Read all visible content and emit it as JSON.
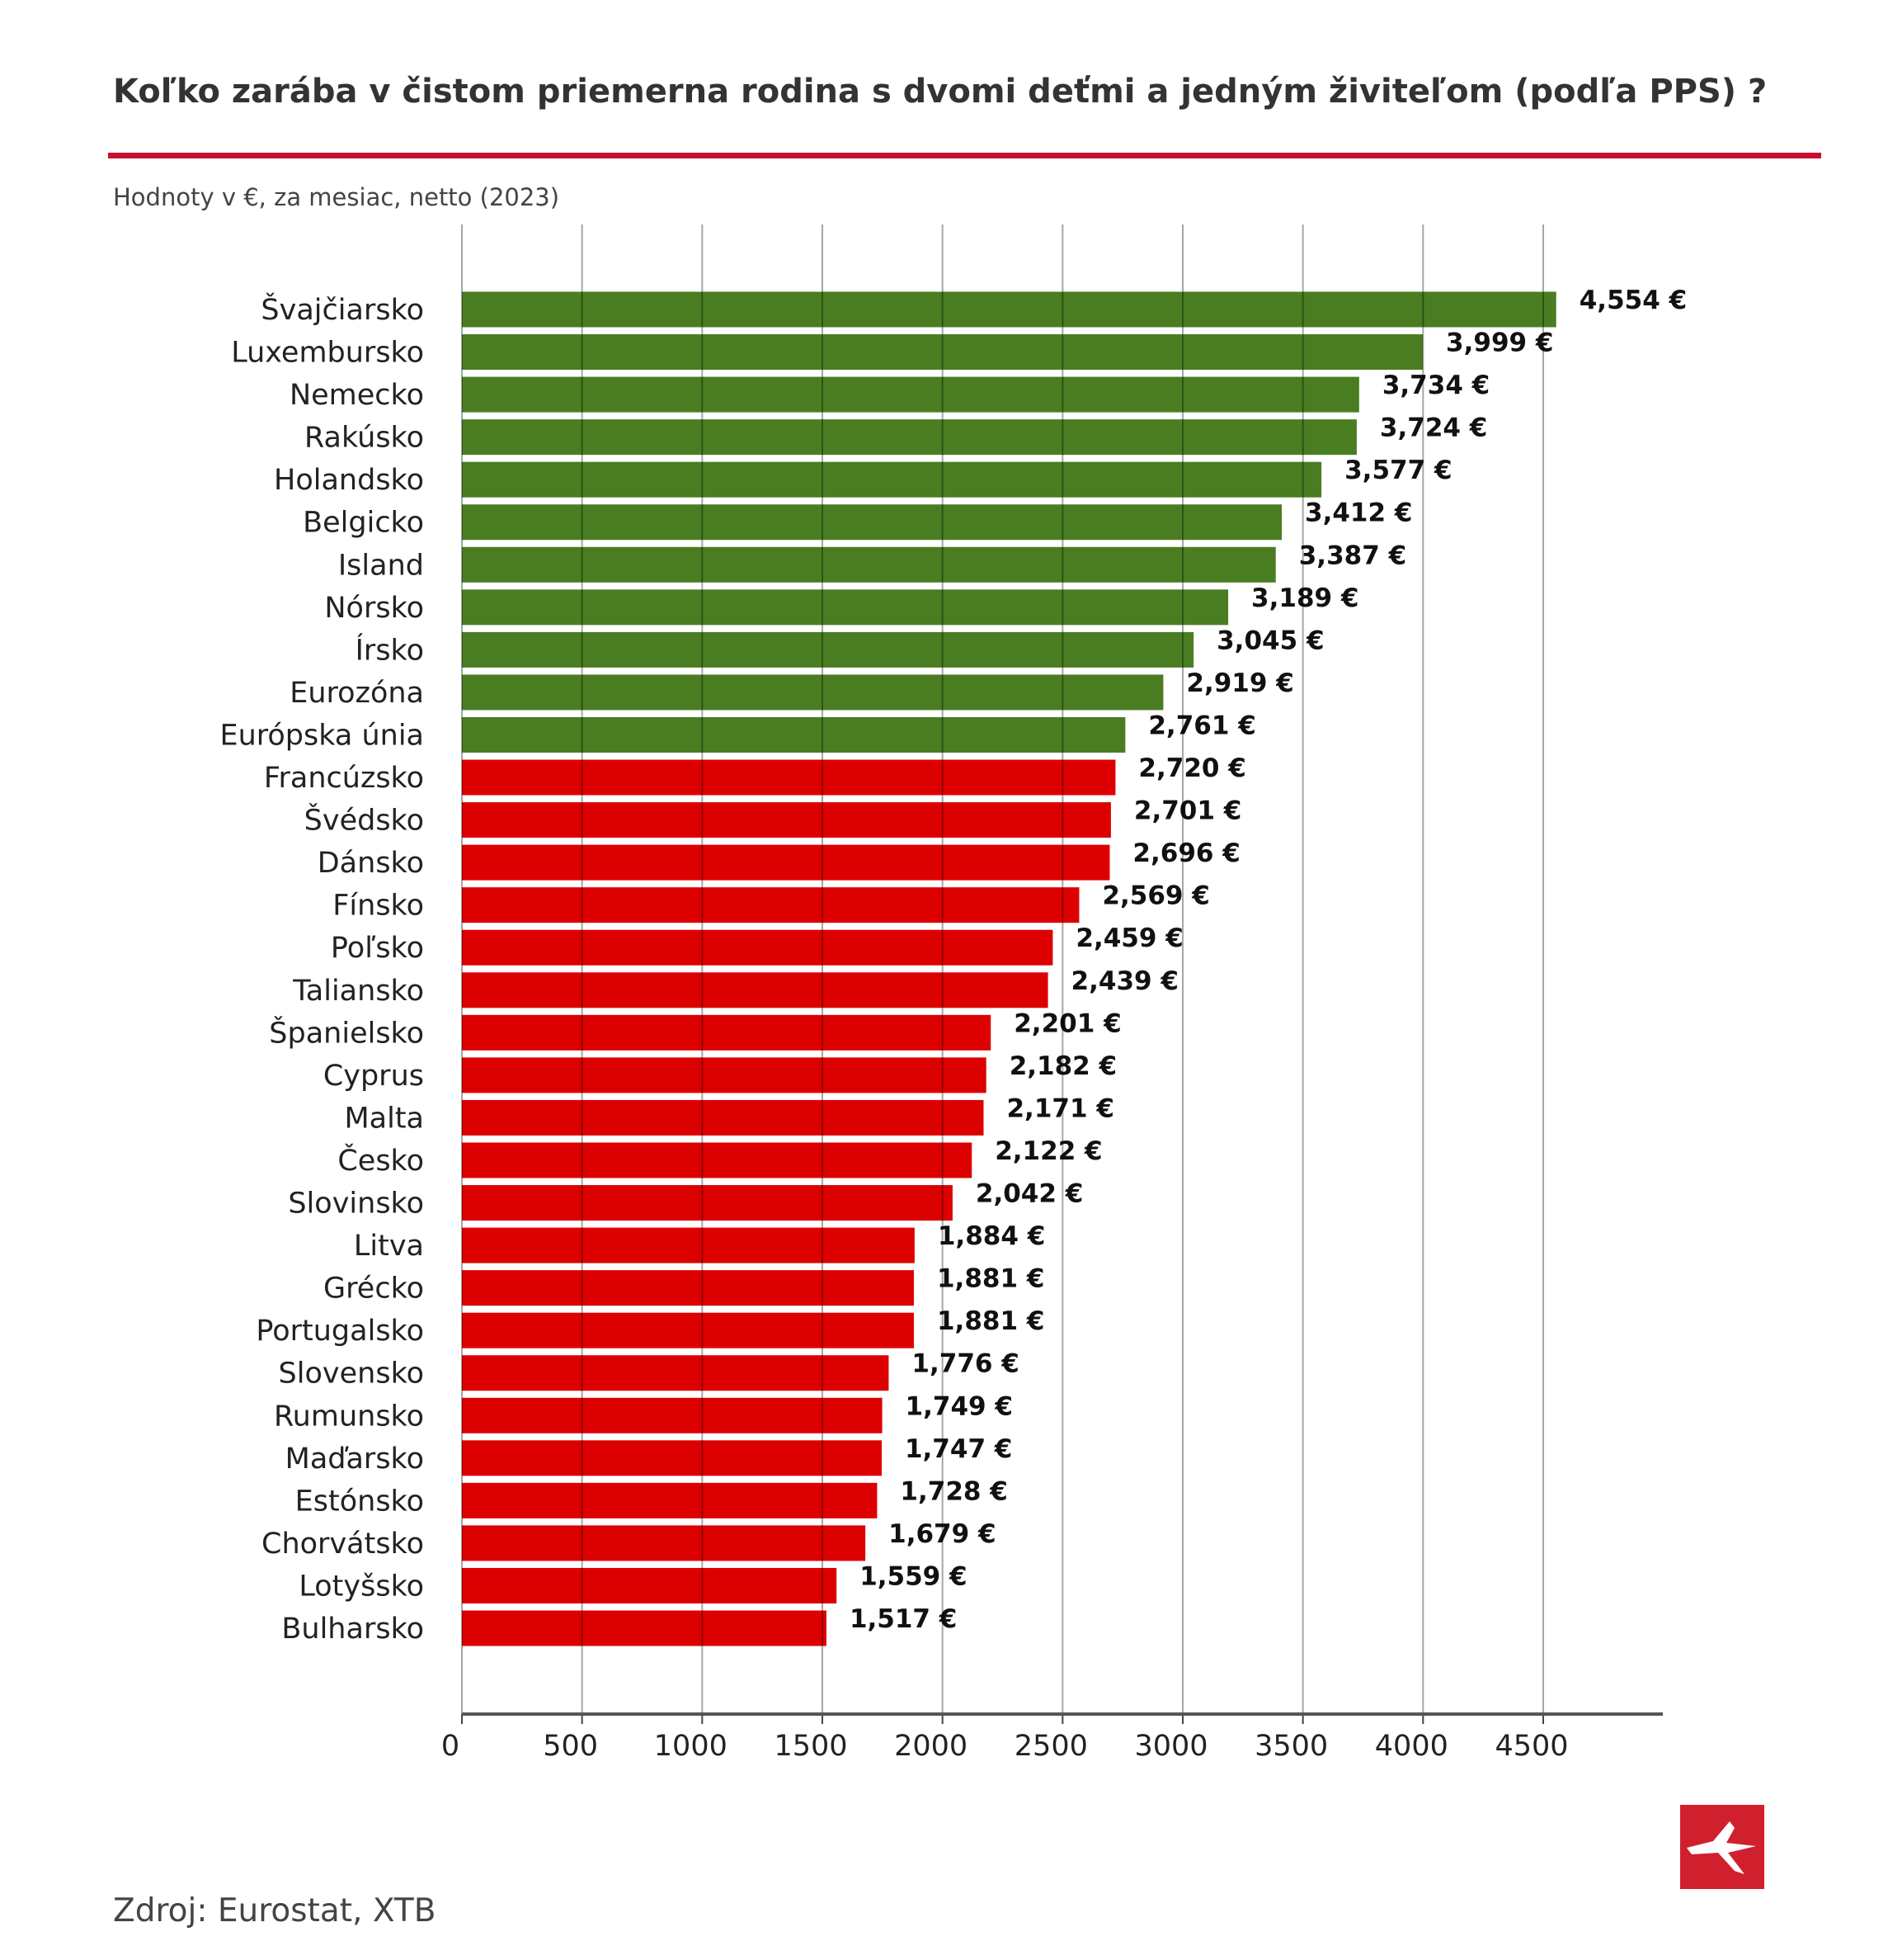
{
  "title": "Koľko zarába v čistom priemerna rodina s dvomi deťmi a jedným živiteľom (podľa PPS) ?",
  "subtitle": "Hodnoty v €, za mesiac, netto (2023)",
  "source": "Zdroj: Eurostat, XTB",
  "logo": "XTB",
  "colors": {
    "above": "#4a7d22",
    "below": "#dd0000",
    "accent": "#c8102e"
  },
  "chart_data": {
    "type": "bar",
    "orientation": "horizontal",
    "title": "Koľko zarába v čistom priemerna rodina s dvomi deťmi a jedným živiteľom (podľa PPS) ?",
    "subtitle": "Hodnoty v €, za mesiac, netto (2023)",
    "categories": [
      "Švajčiarsko",
      "Luxembursko",
      "Nemecko",
      "Rakúsko",
      "Holandsko",
      "Belgicko",
      "Island",
      "Nórsko",
      "Írsko",
      "Eurozóna",
      "Európska únia",
      "Francúzsko",
      "Švédsko",
      "Dánsko",
      "Fínsko",
      "Poľsko",
      "Taliansko",
      "Španielsko",
      "Cyprus",
      "Malta",
      "Česko",
      "Slovinsko",
      "Litva",
      "Grécko",
      "Portugalsko",
      "Slovensko",
      "Rumunsko",
      "Maďarsko",
      "Estónsko",
      "Chorvátsko",
      "Lotyšsko",
      "Bulharsko"
    ],
    "values": [
      4554,
      3999,
      3734,
      3724,
      3577,
      3412,
      3387,
      3189,
      3045,
      2919,
      2761,
      2720,
      2701,
      2696,
      2569,
      2459,
      2439,
      2201,
      2182,
      2171,
      2122,
      2042,
      1884,
      1881,
      1881,
      1776,
      1749,
      1747,
      1728,
      1679,
      1559,
      1517
    ],
    "value_labels": [
      "4,554 €",
      "3,999 €",
      "3,734 €",
      "3,724 €",
      "3,577 €",
      "3,412 €",
      "3,387 €",
      "3,189 €",
      "3,045 €",
      "2,919 €",
      "2,761 €",
      "2,720 €",
      "2,701 €",
      "2,696 €",
      "2,569 €",
      "2,459 €",
      "2,439 €",
      "2,201 €",
      "2,182 €",
      "2,171 €",
      "2,122 €",
      "2,042 €",
      "1,884 €",
      "1,881 €",
      "1,881 €",
      "1,776 €",
      "1,749 €",
      "1,747 €",
      "1,728 €",
      "1,679 €",
      "1,559 €",
      "1,517 €"
    ],
    "bar_colors": [
      "green",
      "green",
      "green",
      "green",
      "green",
      "green",
      "green",
      "green",
      "green",
      "green",
      "green",
      "red",
      "red",
      "red",
      "red",
      "red",
      "red",
      "red",
      "red",
      "red",
      "red",
      "red",
      "red",
      "red",
      "red",
      "red",
      "red",
      "red",
      "red",
      "red",
      "red",
      "red"
    ],
    "xticks": [
      "0",
      "500",
      "1000",
      "1500",
      "2000",
      "2500",
      "3000",
      "3500",
      "4000",
      "4500"
    ],
    "xlim": [
      0,
      5000
    ],
    "grid": "vertical",
    "xlabel": "",
    "ylabel": ""
  }
}
